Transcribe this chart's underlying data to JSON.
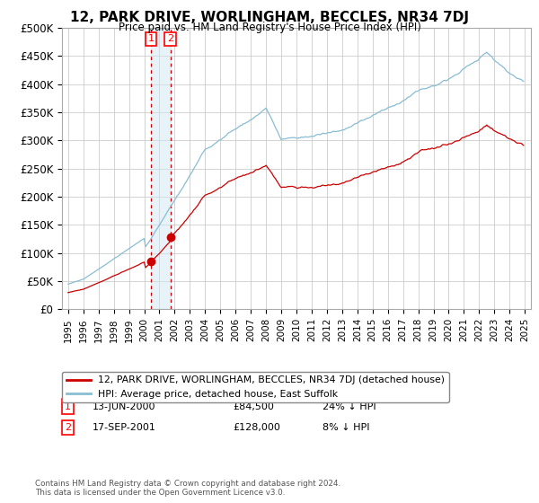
{
  "title": "12, PARK DRIVE, WORLINGHAM, BECCLES, NR34 7DJ",
  "subtitle": "Price paid vs. HM Land Registry's House Price Index (HPI)",
  "legend_line1": "12, PARK DRIVE, WORLINGHAM, BECCLES, NR34 7DJ (detached house)",
  "legend_line2": "HPI: Average price, detached house, East Suffolk",
  "transaction1_date": "13-JUN-2000",
  "transaction1_price": "£84,500",
  "transaction1_hpi": "24% ↓ HPI",
  "transaction1_year": 2000.45,
  "transaction1_value": 84500,
  "transaction2_date": "17-SEP-2001",
  "transaction2_price": "£128,000",
  "transaction2_hpi": "8% ↓ HPI",
  "transaction2_year": 2001.71,
  "transaction2_value": 128000,
  "footer": "Contains HM Land Registry data © Crown copyright and database right 2024.\nThis data is licensed under the Open Government Licence v3.0.",
  "ylim": [
    0,
    500000
  ],
  "yticks": [
    0,
    50000,
    100000,
    150000,
    200000,
    250000,
    300000,
    350000,
    400000,
    450000,
    500000
  ],
  "ytick_labels": [
    "£0",
    "£50K",
    "£100K",
    "£150K",
    "£200K",
    "£250K",
    "£300K",
    "£350K",
    "£400K",
    "£450K",
    "£500K"
  ],
  "red_color": "#cc0000",
  "blue_color": "#89bdd3",
  "background_color": "#ffffff",
  "grid_color": "#cccccc"
}
